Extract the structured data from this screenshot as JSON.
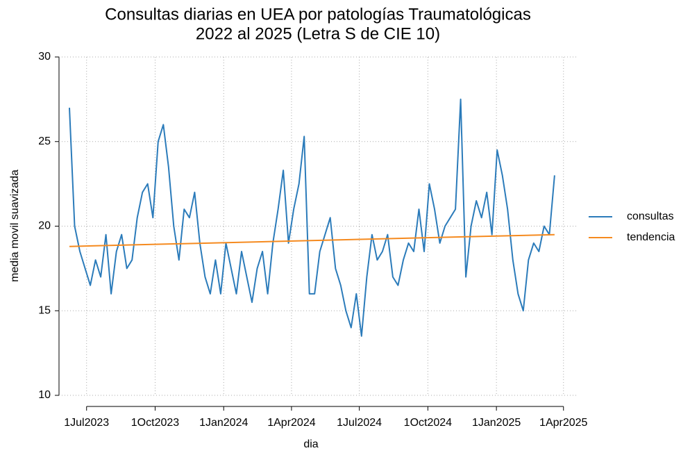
{
  "chart_data": {
    "type": "line",
    "title": [
      "Consultas diarias en UEA por patologías Traumatológicas",
      "2022 al 2025 (Letra S de CIE 10)"
    ],
    "x_label": "dia",
    "y_label": "media movil suavizada",
    "xlim": [
      "2023-05-25",
      "2025-04-18"
    ],
    "xticks": [
      {
        "value": "2023-07-01",
        "label": "1Jul2023"
      },
      {
        "value": "2023-10-01",
        "label": "1Oct2023"
      },
      {
        "value": "2024-01-01",
        "label": "1Jan2024"
      },
      {
        "value": "2024-04-01",
        "label": "1Apr2024"
      },
      {
        "value": "2024-07-01",
        "label": "1Jul2024"
      },
      {
        "value": "2024-10-01",
        "label": "1Oct2024"
      },
      {
        "value": "2025-01-01",
        "label": "1Jan2025"
      },
      {
        "value": "2025-04-01",
        "label": "1Apr2025"
      }
    ],
    "ylim": [
      10,
      30
    ],
    "yticks": [
      10,
      15,
      20,
      25,
      30
    ],
    "grid": true,
    "legend": "right",
    "series": [
      {
        "name": "consultas",
        "color": "#2b7bba",
        "x": [
          "2023-06-08",
          "2023-06-15",
          "2023-06-22",
          "2023-06-29",
          "2023-07-06",
          "2023-07-13",
          "2023-07-20",
          "2023-07-27",
          "2023-08-03",
          "2023-08-10",
          "2023-08-17",
          "2023-08-24",
          "2023-08-31",
          "2023-09-07",
          "2023-09-14",
          "2023-09-21",
          "2023-09-28",
          "2023-10-05",
          "2023-10-12",
          "2023-10-19",
          "2023-10-26",
          "2023-11-02",
          "2023-11-09",
          "2023-11-16",
          "2023-11-23",
          "2023-11-30",
          "2023-12-07",
          "2023-12-14",
          "2023-12-21",
          "2023-12-28",
          "2024-01-04",
          "2024-01-11",
          "2024-01-18",
          "2024-01-25",
          "2024-02-01",
          "2024-02-08",
          "2024-02-15",
          "2024-02-22",
          "2024-02-29",
          "2024-03-07",
          "2024-03-14",
          "2024-03-21",
          "2024-03-28",
          "2024-04-04",
          "2024-04-11",
          "2024-04-18",
          "2024-04-25",
          "2024-05-02",
          "2024-05-09",
          "2024-05-16",
          "2024-05-23",
          "2024-05-30",
          "2024-06-06",
          "2024-06-13",
          "2024-06-20",
          "2024-06-27",
          "2024-07-04",
          "2024-07-11",
          "2024-07-18",
          "2024-07-25",
          "2024-08-01",
          "2024-08-08",
          "2024-08-15",
          "2024-08-22",
          "2024-08-29",
          "2024-09-05",
          "2024-09-12",
          "2024-09-19",
          "2024-09-26",
          "2024-10-03",
          "2024-10-10",
          "2024-10-17",
          "2024-10-24",
          "2024-10-31",
          "2024-11-07",
          "2024-11-14",
          "2024-11-21",
          "2024-11-28",
          "2024-12-05",
          "2024-12-12",
          "2024-12-19",
          "2024-12-26",
          "2025-01-02",
          "2025-01-09",
          "2025-01-16",
          "2025-01-23",
          "2025-01-30",
          "2025-02-06",
          "2025-02-13",
          "2025-02-20",
          "2025-02-27",
          "2025-03-06",
          "2025-03-13",
          "2025-03-20"
        ],
        "values": [
          27,
          20,
          18.5,
          17.5,
          16.5,
          18,
          17,
          19.5,
          16,
          18.5,
          19.5,
          17.5,
          18,
          20.5,
          22,
          22.5,
          20.5,
          25,
          26,
          23.5,
          20,
          18,
          21,
          20.5,
          22,
          19,
          17,
          16,
          18,
          16,
          19,
          17.5,
          16,
          18.5,
          17,
          15.5,
          17.5,
          18.5,
          16,
          19,
          21,
          23.3,
          19,
          21,
          22.5,
          25.3,
          16,
          16,
          18.5,
          19.5,
          20.5,
          17.5,
          16.5,
          15,
          14,
          16,
          13.5,
          17,
          19.5,
          18,
          18.5,
          19.5,
          17,
          16.5,
          18,
          19,
          18.5,
          21,
          18.5,
          22.5,
          21,
          19,
          20,
          20.5,
          21,
          27.5,
          17,
          20,
          21.5,
          20.5,
          22,
          19.5,
          24.5,
          23,
          21,
          18,
          16,
          15,
          18,
          19,
          18.5,
          20,
          19.5,
          23
        ]
      },
      {
        "name": "tendencia",
        "color": "#f58a1f",
        "x": [
          "2023-06-08",
          "2025-03-20"
        ],
        "values": [
          18.8,
          19.5
        ]
      }
    ]
  }
}
